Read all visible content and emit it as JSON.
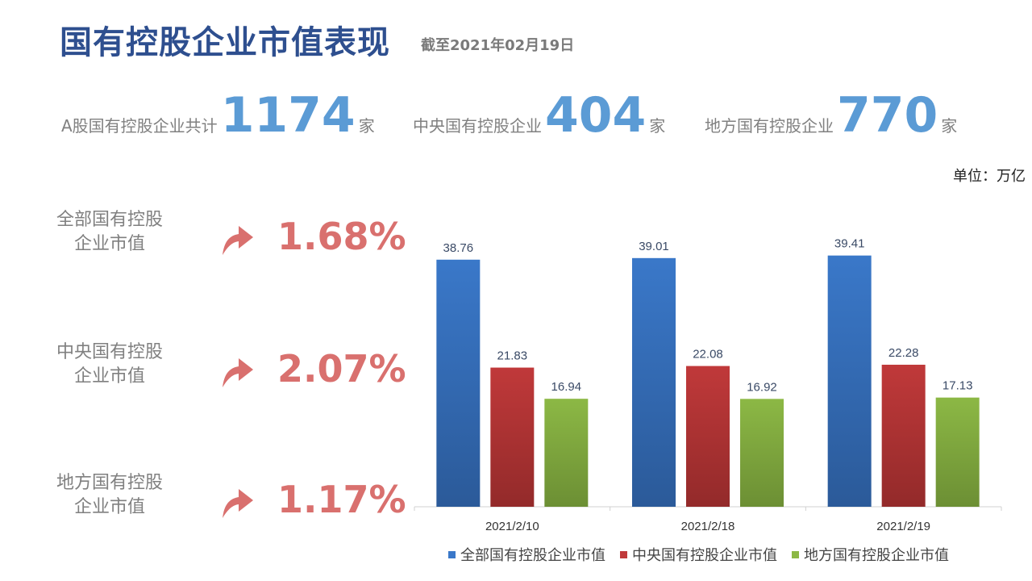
{
  "header": {
    "title": "国有控股企业市值表现",
    "subtitle": "截至2021年02月19日"
  },
  "stats": [
    {
      "label": "A股国有控股企业共计",
      "value": "1174",
      "unit": "家"
    },
    {
      "label": "中央国有控股企业",
      "value": "404",
      "unit": "家"
    },
    {
      "label": "地方国有控股企业",
      "value": "770",
      "unit": "家"
    }
  ],
  "unit_note": "单位：万亿",
  "metrics": [
    {
      "label_line1": "全部国有控股",
      "label_line2": "企业市值",
      "change": "1.68%",
      "icon": "up-arrow-icon"
    },
    {
      "label_line1": "中央国有控股",
      "label_line2": "企业市值",
      "change": "2.07%",
      "icon": "up-arrow-icon"
    },
    {
      "label_line1": "地方国有控股",
      "label_line2": "企业市值",
      "change": "1.17%",
      "icon": "up-arrow-icon"
    }
  ],
  "colors": {
    "title": "#2e4f8f",
    "stat_number": "#5b9bd5",
    "change": "#d9706e",
    "series": [
      "#3a78c9",
      "#c0393a",
      "#8cb845"
    ]
  },
  "chart_data": {
    "type": "bar",
    "categories": [
      "2021/2/10",
      "2021/2/18",
      "2021/2/19"
    ],
    "series": [
      {
        "name": "全部国有控股企业市值",
        "values": [
          38.76,
          39.01,
          39.41
        ]
      },
      {
        "name": "中央国有控股企业市值",
        "values": [
          21.83,
          22.08,
          22.28
        ]
      },
      {
        "name": "地方国有控股企业市值",
        "values": [
          16.94,
          16.92,
          17.13
        ]
      }
    ],
    "ylim": [
      0,
      45
    ],
    "grid": false,
    "legend": "bottom"
  }
}
